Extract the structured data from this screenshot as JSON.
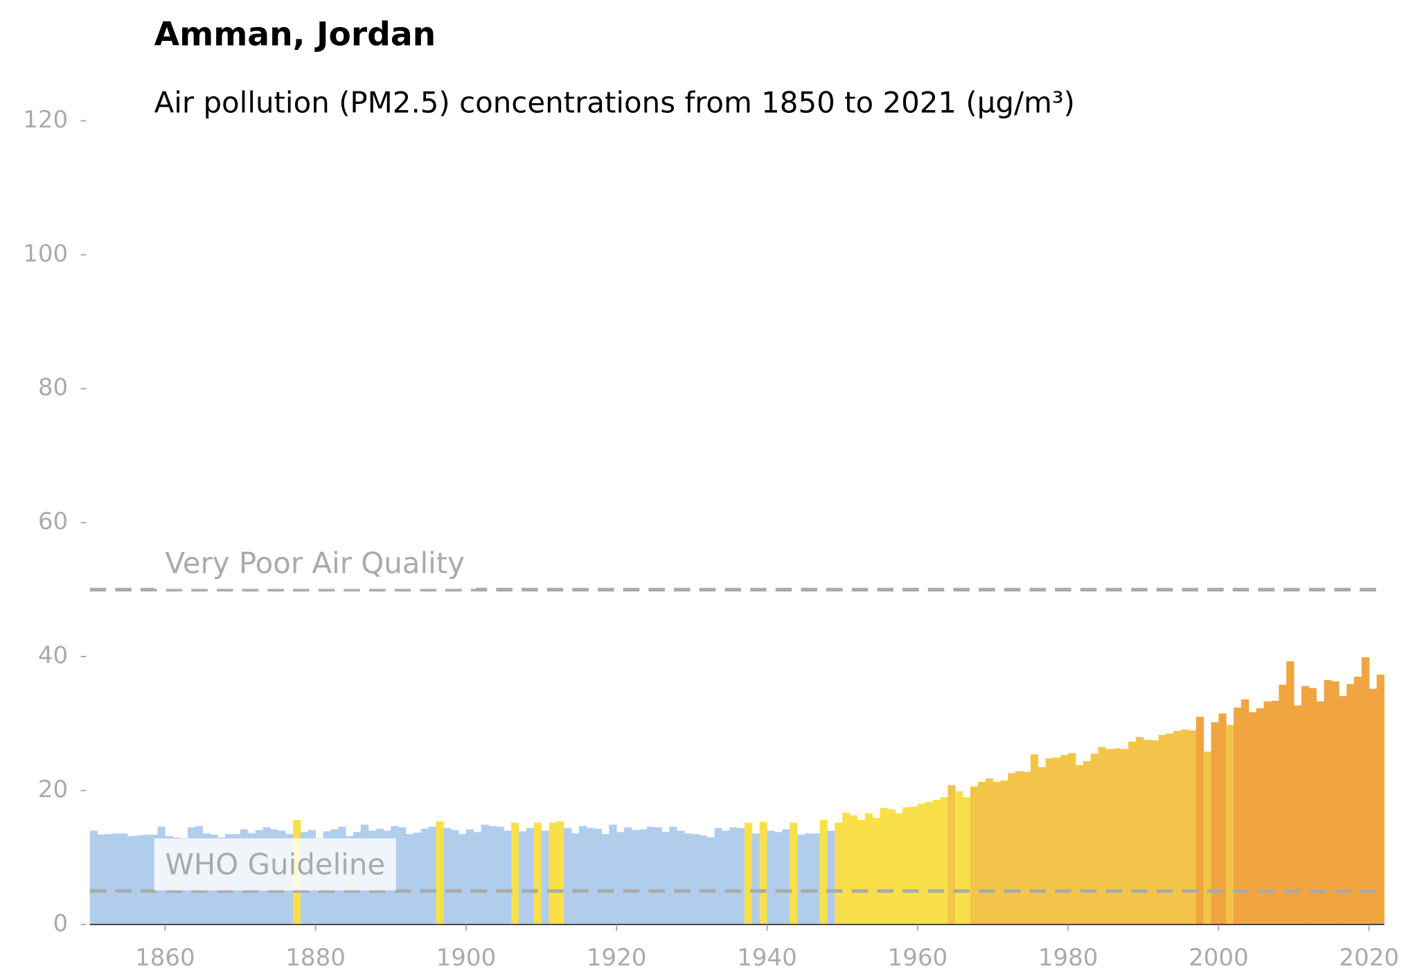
{
  "chart_data": {
    "type": "bar",
    "title": "Amman, Jordan",
    "subtitle": "Air pollution (PM2.5) concentrations from 1850 to 2021 (µg/m³)",
    "x": [
      1850,
      1851,
      1852,
      1853,
      1854,
      1855,
      1856,
      1857,
      1858,
      1859,
      1860,
      1861,
      1862,
      1863,
      1864,
      1865,
      1866,
      1867,
      1868,
      1869,
      1870,
      1871,
      1872,
      1873,
      1874,
      1875,
      1876,
      1877,
      1878,
      1879,
      1880,
      1881,
      1882,
      1883,
      1884,
      1885,
      1886,
      1887,
      1888,
      1889,
      1890,
      1891,
      1892,
      1893,
      1894,
      1895,
      1896,
      1897,
      1898,
      1899,
      1900,
      1901,
      1902,
      1903,
      1904,
      1905,
      1906,
      1907,
      1908,
      1909,
      1910,
      1911,
      1912,
      1913,
      1914,
      1915,
      1916,
      1917,
      1918,
      1919,
      1920,
      1921,
      1922,
      1923,
      1924,
      1925,
      1926,
      1927,
      1928,
      1929,
      1930,
      1931,
      1932,
      1933,
      1934,
      1935,
      1936,
      1937,
      1938,
      1939,
      1940,
      1941,
      1942,
      1943,
      1944,
      1945,
      1946,
      1947,
      1948,
      1949,
      1950,
      1951,
      1952,
      1953,
      1954,
      1955,
      1956,
      1957,
      1958,
      1959,
      1960,
      1961,
      1962,
      1963,
      1964,
      1965,
      1966,
      1967,
      1968,
      1969,
      1970,
      1971,
      1972,
      1973,
      1974,
      1975,
      1976,
      1977,
      1978,
      1979,
      1980,
      1981,
      1982,
      1983,
      1984,
      1985,
      1986,
      1987,
      1988,
      1989,
      1990,
      1991,
      1992,
      1993,
      1994,
      1995,
      1996,
      1997,
      1998,
      1999,
      2000,
      2001,
      2002,
      2003,
      2004,
      2005,
      2006,
      2007,
      2008,
      2009,
      2010,
      2011,
      2012,
      2013,
      2014,
      2015,
      2016,
      2017,
      2018,
      2019,
      2020,
      2021
    ],
    "values": [
      14.0,
      13.4,
      13.5,
      13.6,
      13.6,
      13.2,
      13.3,
      13.4,
      13.4,
      14.6,
      13.2,
      13.0,
      12.9,
      14.5,
      14.7,
      13.6,
      13.4,
      13.0,
      13.5,
      13.5,
      14.2,
      13.6,
      14.1,
      14.5,
      14.2,
      14.0,
      13.5,
      15.6,
      13.8,
      14.1,
      12.9,
      13.9,
      14.2,
      14.6,
      13.2,
      13.8,
      14.9,
      14.0,
      14.3,
      14.0,
      14.7,
      14.5,
      13.5,
      13.7,
      14.3,
      14.6,
      15.4,
      14.4,
      14.1,
      13.5,
      14.2,
      13.8,
      14.9,
      14.7,
      14.6,
      14.0,
      15.2,
      13.9,
      14.4,
      15.2,
      14.0,
      15.2,
      15.4,
      14.4,
      13.6,
      14.7,
      14.4,
      14.3,
      13.5,
      14.9,
      13.8,
      14.5,
      14.1,
      14.2,
      14.6,
      14.5,
      13.8,
      14.6,
      14.0,
      13.6,
      13.5,
      13.3,
      13.0,
      14.4,
      14.0,
      14.5,
      14.4,
      15.2,
      13.6,
      15.3,
      14.0,
      13.8,
      14.2,
      15.2,
      13.4,
      13.6,
      13.6,
      15.6,
      14.0,
      15.2,
      16.7,
      16.3,
      15.6,
      16.6,
      15.9,
      17.4,
      17.2,
      16.6,
      17.5,
      17.6,
      18.0,
      18.3,
      18.6,
      19.0,
      20.8,
      19.9,
      19.0,
      20.6,
      21.3,
      21.8,
      21.3,
      21.5,
      22.6,
      22.9,
      22.8,
      25.4,
      23.5,
      24.8,
      24.9,
      25.3,
      25.6,
      23.8,
      24.4,
      25.5,
      26.5,
      26.2,
      26.3,
      26.2,
      27.3,
      28.0,
      27.6,
      27.5,
      28.3,
      28.5,
      28.9,
      29.1,
      29.0,
      31.0,
      25.8,
      30.2,
      31.5,
      29.8,
      32.4,
      33.6,
      31.7,
      32.3,
      33.3,
      33.4,
      35.8,
      39.3,
      32.7,
      35.6,
      35.3,
      33.3,
      36.5,
      36.3,
      34.1,
      35.9,
      37.0,
      39.9,
      35.2,
      37.3
    ],
    "colors": [
      "#b0cdec",
      "#b0cdec",
      "#b0cdec",
      "#b0cdec",
      "#b0cdec",
      "#b0cdec",
      "#b0cdec",
      "#b0cdec",
      "#b0cdec",
      "#b0cdec",
      "#b0cdec",
      "#b0cdec",
      "#b0cdec",
      "#b0cdec",
      "#b0cdec",
      "#b0cdec",
      "#b0cdec",
      "#b0cdec",
      "#b0cdec",
      "#b0cdec",
      "#b0cdec",
      "#b0cdec",
      "#b0cdec",
      "#b0cdec",
      "#b0cdec",
      "#b0cdec",
      "#b0cdec",
      "#f9e04a",
      "#b0cdec",
      "#b0cdec",
      "#b0cdec",
      "#b0cdec",
      "#b0cdec",
      "#b0cdec",
      "#b0cdec",
      "#b0cdec",
      "#b0cdec",
      "#b0cdec",
      "#b0cdec",
      "#b0cdec",
      "#b0cdec",
      "#b0cdec",
      "#b0cdec",
      "#b0cdec",
      "#b0cdec",
      "#b0cdec",
      "#f9e04a",
      "#b0cdec",
      "#b0cdec",
      "#b0cdec",
      "#b0cdec",
      "#b0cdec",
      "#b0cdec",
      "#b0cdec",
      "#b0cdec",
      "#b0cdec",
      "#f9e04a",
      "#b0cdec",
      "#b0cdec",
      "#f9e04a",
      "#b0cdec",
      "#f9e04a",
      "#f9e04a",
      "#b0cdec",
      "#b0cdec",
      "#b0cdec",
      "#b0cdec",
      "#b0cdec",
      "#b0cdec",
      "#b0cdec",
      "#b0cdec",
      "#b0cdec",
      "#b0cdec",
      "#b0cdec",
      "#b0cdec",
      "#b0cdec",
      "#b0cdec",
      "#b0cdec",
      "#b0cdec",
      "#b0cdec",
      "#b0cdec",
      "#b0cdec",
      "#b0cdec",
      "#b0cdec",
      "#b0cdec",
      "#b0cdec",
      "#b0cdec",
      "#f9e04a",
      "#b0cdec",
      "#f9e04a",
      "#b0cdec",
      "#b0cdec",
      "#b0cdec",
      "#f9e04a",
      "#b0cdec",
      "#b0cdec",
      "#b0cdec",
      "#f9e04a",
      "#b0cdec",
      "#f9e04a",
      "#f9e04a",
      "#f9e04a",
      "#f9e04a",
      "#f9e04a",
      "#f9e04a",
      "#f9e04a",
      "#f9e04a",
      "#f9e04a",
      "#f9e04a",
      "#f9e04a",
      "#f9e04a",
      "#f9e04a",
      "#f9e04a",
      "#f9e04a",
      "#f2c54a",
      "#f9e04a",
      "#f9e04a",
      "#f2c54a",
      "#f2c54a",
      "#f2c54a",
      "#f2c54a",
      "#f2c54a",
      "#f2c54a",
      "#f2c54a",
      "#f2c54a",
      "#f2c54a",
      "#f2c54a",
      "#f2c54a",
      "#f2c54a",
      "#f2c54a",
      "#f2c54a",
      "#f2c54a",
      "#f2c54a",
      "#f2c54a",
      "#f2c54a",
      "#f2c54a",
      "#f2c54a",
      "#f2c54a",
      "#f2c54a",
      "#f2c54a",
      "#f2c54a",
      "#f2c54a",
      "#f2c54a",
      "#f2c54a",
      "#f2c54a",
      "#f2c54a",
      "#f2c54a",
      "#f0a540",
      "#f2c54a",
      "#f0a540",
      "#f0a540",
      "#f2c54a",
      "#f0a540",
      "#f0a540",
      "#f0a540",
      "#f0a540",
      "#f0a540",
      "#f0a540",
      "#f0a540",
      "#f0a540",
      "#f0a540",
      "#f0a540",
      "#f0a540",
      "#f0a540",
      "#f0a540",
      "#f0a540",
      "#f0a540",
      "#f0a540",
      "#f0a540",
      "#f0a540",
      "#f0a540",
      "#f0a540"
    ],
    "xlim": [
      1850,
      2022
    ],
    "xticks": [
      1860,
      1880,
      1900,
      1920,
      1940,
      1960,
      1980,
      2000,
      2020
    ],
    "ylim": [
      0,
      120
    ],
    "yticks": [
      0,
      20,
      40,
      60,
      80,
      100,
      120
    ],
    "annotations": [
      {
        "label": "WHO Guideline",
        "value": 5
      },
      {
        "label": "Very Poor Air Quality",
        "value": 50
      }
    ]
  }
}
